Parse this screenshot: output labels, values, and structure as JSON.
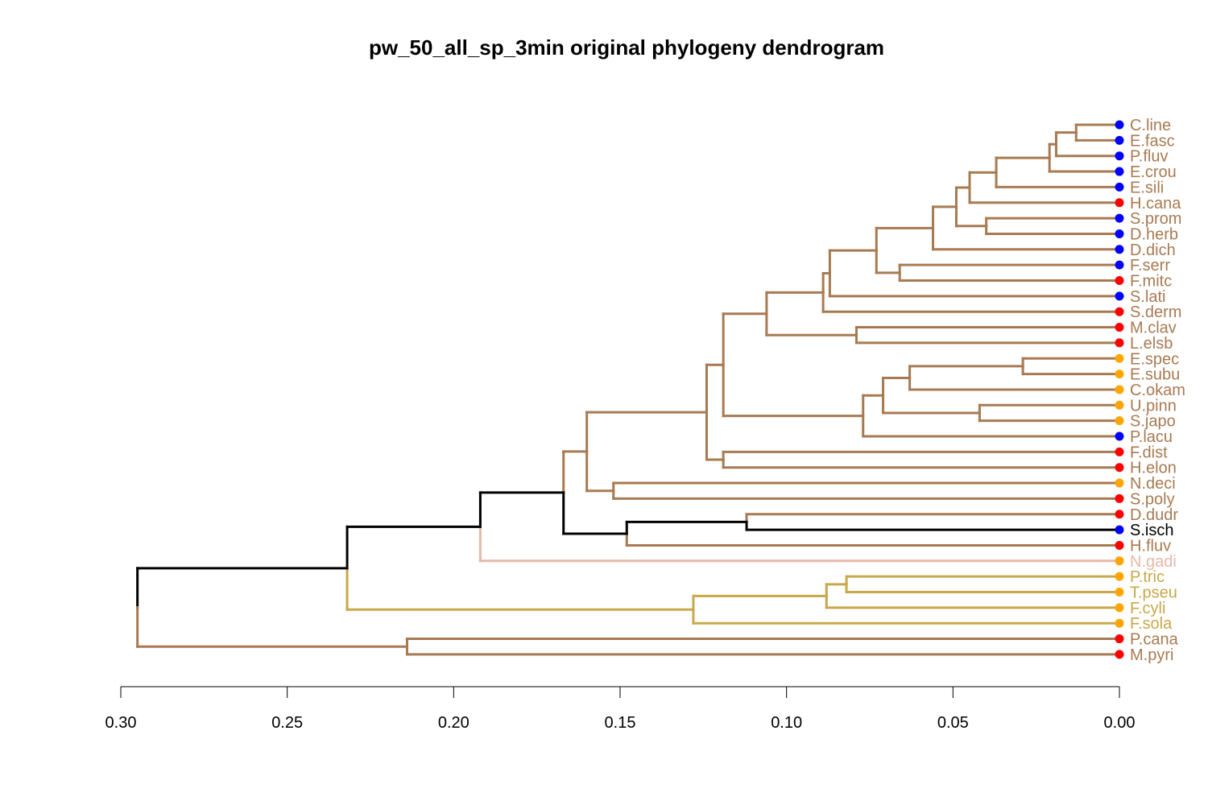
{
  "chart_data": {
    "type": "dendrogram",
    "title": "pw_50_all_sp_3min original phylogeny dendrogram",
    "xlabel": "",
    "ylabel": "",
    "xlim": [
      0.3,
      0.0
    ],
    "x_ticks": [
      0.3,
      0.25,
      0.2,
      0.15,
      0.1,
      0.05,
      0.0
    ],
    "x_tick_labels": [
      "0.30",
      "0.25",
      "0.20",
      "0.15",
      "0.10",
      "0.05",
      "0.00"
    ],
    "colors": {
      "brown": "#A87A52",
      "black": "#000000",
      "pink": "#E5B9A9",
      "gold": "#C8A84A",
      "dot_blue": "#0000FF",
      "dot_red": "#FF0000",
      "dot_orange": "#FFA500"
    },
    "leaves": [
      {
        "name": "C.line",
        "dot": "dot_blue",
        "label_color": "brown"
      },
      {
        "name": "E.fasc",
        "dot": "dot_blue",
        "label_color": "brown"
      },
      {
        "name": "P.fluv",
        "dot": "dot_blue",
        "label_color": "brown"
      },
      {
        "name": "E.crou",
        "dot": "dot_blue",
        "label_color": "brown"
      },
      {
        "name": "E.sili",
        "dot": "dot_blue",
        "label_color": "brown"
      },
      {
        "name": "H.cana",
        "dot": "dot_red",
        "label_color": "brown"
      },
      {
        "name": "S.prom",
        "dot": "dot_blue",
        "label_color": "brown"
      },
      {
        "name": "D.herb",
        "dot": "dot_blue",
        "label_color": "brown"
      },
      {
        "name": "D.dich",
        "dot": "dot_blue",
        "label_color": "brown"
      },
      {
        "name": "F.serr",
        "dot": "dot_blue",
        "label_color": "brown"
      },
      {
        "name": "F.mitc",
        "dot": "dot_red",
        "label_color": "brown"
      },
      {
        "name": "S.lati",
        "dot": "dot_blue",
        "label_color": "brown"
      },
      {
        "name": "S.derm",
        "dot": "dot_red",
        "label_color": "brown"
      },
      {
        "name": "M.clav",
        "dot": "dot_red",
        "label_color": "brown"
      },
      {
        "name": "L.elsb",
        "dot": "dot_red",
        "label_color": "brown"
      },
      {
        "name": "E.spec",
        "dot": "dot_orange",
        "label_color": "brown"
      },
      {
        "name": "E.subu",
        "dot": "dot_orange",
        "label_color": "brown"
      },
      {
        "name": "C.okam",
        "dot": "dot_orange",
        "label_color": "brown"
      },
      {
        "name": "U.pinn",
        "dot": "dot_orange",
        "label_color": "brown"
      },
      {
        "name": "S.japo",
        "dot": "dot_orange",
        "label_color": "brown"
      },
      {
        "name": "P.lacu",
        "dot": "dot_blue",
        "label_color": "brown"
      },
      {
        "name": "F.dist",
        "dot": "dot_red",
        "label_color": "brown"
      },
      {
        "name": "H.elon",
        "dot": "dot_red",
        "label_color": "brown"
      },
      {
        "name": "N.deci",
        "dot": "dot_orange",
        "label_color": "brown"
      },
      {
        "name": "S.poly",
        "dot": "dot_red",
        "label_color": "brown"
      },
      {
        "name": "D.dudr",
        "dot": "dot_red",
        "label_color": "brown"
      },
      {
        "name": "S.isch",
        "dot": "dot_blue",
        "label_color": "black"
      },
      {
        "name": "H.fluv",
        "dot": "dot_red",
        "label_color": "brown"
      },
      {
        "name": "N.gadi",
        "dot": "dot_orange",
        "label_color": "pink"
      },
      {
        "name": "P.tric",
        "dot": "dot_orange",
        "label_color": "gold"
      },
      {
        "name": "T.pseu",
        "dot": "dot_orange",
        "label_color": "gold"
      },
      {
        "name": "F.cyli",
        "dot": "dot_orange",
        "label_color": "gold"
      },
      {
        "name": "F.sola",
        "dot": "dot_orange",
        "label_color": "gold"
      },
      {
        "name": "P.cana",
        "dot": "dot_red",
        "label_color": "brown"
      },
      {
        "name": "M.pyri",
        "dot": "dot_red",
        "label_color": "brown"
      }
    ],
    "merges": [
      {
        "id": "a",
        "height": 0.013,
        "children": [
          "C.line",
          "E.fasc"
        ],
        "color": "brown"
      },
      {
        "id": "b",
        "height": 0.019,
        "children": [
          "a",
          "P.fluv"
        ],
        "color": "brown"
      },
      {
        "id": "c",
        "height": 0.021,
        "children": [
          "b",
          "E.crou"
        ],
        "color": "brown"
      },
      {
        "id": "d",
        "height": 0.037,
        "children": [
          "c",
          "E.sili"
        ],
        "color": "brown"
      },
      {
        "id": "e",
        "height": 0.045,
        "children": [
          "d",
          "H.cana"
        ],
        "color": "brown"
      },
      {
        "id": "f",
        "height": 0.04,
        "children": [
          "S.prom",
          "D.herb"
        ],
        "color": "brown"
      },
      {
        "id": "g",
        "height": 0.049,
        "children": [
          "e",
          "f"
        ],
        "color": "brown"
      },
      {
        "id": "h",
        "height": 0.056,
        "children": [
          "g",
          "D.dich"
        ],
        "color": "brown"
      },
      {
        "id": "i",
        "height": 0.066,
        "children": [
          "F.serr",
          "F.mitc"
        ],
        "color": "brown"
      },
      {
        "id": "j",
        "height": 0.073,
        "children": [
          "h",
          "i"
        ],
        "color": "brown"
      },
      {
        "id": "k",
        "height": 0.087,
        "children": [
          "j",
          "S.lati"
        ],
        "color": "brown"
      },
      {
        "id": "l",
        "height": 0.089,
        "children": [
          "k",
          "S.derm"
        ],
        "color": "brown"
      },
      {
        "id": "m",
        "height": 0.079,
        "children": [
          "M.clav",
          "L.elsb"
        ],
        "color": "brown"
      },
      {
        "id": "n",
        "height": 0.106,
        "children": [
          "l",
          "m"
        ],
        "color": "brown"
      },
      {
        "id": "o",
        "height": 0.029,
        "children": [
          "E.spec",
          "E.subu"
        ],
        "color": "brown"
      },
      {
        "id": "p",
        "height": 0.063,
        "children": [
          "o",
          "C.okam"
        ],
        "color": "brown"
      },
      {
        "id": "q",
        "height": 0.042,
        "children": [
          "U.pinn",
          "S.japo"
        ],
        "color": "brown"
      },
      {
        "id": "r",
        "height": 0.071,
        "children": [
          "p",
          "q"
        ],
        "color": "brown"
      },
      {
        "id": "s",
        "height": 0.077,
        "children": [
          "r",
          "P.lacu"
        ],
        "color": "brown"
      },
      {
        "id": "t",
        "height": 0.119,
        "children": [
          "n",
          "s"
        ],
        "color": "brown"
      },
      {
        "id": "u",
        "height": 0.119,
        "children": [
          "F.dist",
          "H.elon"
        ],
        "color": "brown"
      },
      {
        "id": "v",
        "height": 0.124,
        "children": [
          "t",
          "u"
        ],
        "color": "brown"
      },
      {
        "id": "w",
        "height": 0.152,
        "children": [
          "N.deci",
          "S.poly"
        ],
        "color": "brown"
      },
      {
        "id": "x",
        "height": 0.16,
        "children": [
          "v",
          "w"
        ],
        "color": "brown"
      },
      {
        "id": "y",
        "height": 0.112,
        "children": [
          "D.dudr",
          "S.isch"
        ],
        "color": "brown",
        "branch_colors": [
          "brown",
          "black"
        ]
      },
      {
        "id": "z",
        "height": 0.148,
        "children": [
          "y",
          "H.fluv"
        ],
        "color": "brown",
        "branch_colors": [
          "black",
          "brown"
        ]
      },
      {
        "id": "aa",
        "height": 0.167,
        "children": [
          "x",
          "z"
        ],
        "color": "black",
        "branch_colors": [
          "brown",
          "black"
        ]
      },
      {
        "id": "bb",
        "height": 0.192,
        "children": [
          "aa",
          "N.gadi"
        ],
        "color": "black",
        "branch_colors": [
          "black",
          "pink"
        ]
      },
      {
        "id": "cc",
        "height": 0.082,
        "children": [
          "P.tric",
          "T.pseu"
        ],
        "color": "gold"
      },
      {
        "id": "dd",
        "height": 0.088,
        "children": [
          "cc",
          "F.cyli"
        ],
        "color": "gold"
      },
      {
        "id": "ee",
        "height": 0.128,
        "children": [
          "dd",
          "F.sola"
        ],
        "color": "gold"
      },
      {
        "id": "ff",
        "height": 0.232,
        "children": [
          "bb",
          "ee"
        ],
        "color": "black",
        "branch_colors": [
          "black",
          "gold"
        ]
      },
      {
        "id": "gg",
        "height": 0.214,
        "children": [
          "P.cana",
          "M.pyri"
        ],
        "color": "brown"
      },
      {
        "id": "root",
        "height": 0.295,
        "children": [
          "ff",
          "gg"
        ],
        "color": "black",
        "branch_colors": [
          "black",
          "brown"
        ]
      }
    ]
  }
}
